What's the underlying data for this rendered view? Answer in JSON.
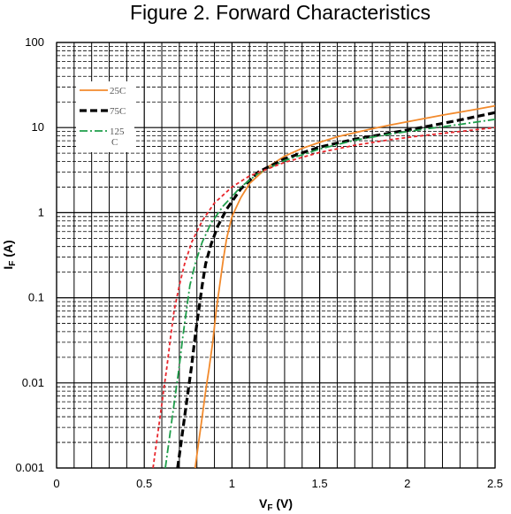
{
  "chart_data": {
    "type": "line",
    "title": "Figure 2. Forward Characteristics",
    "xlabel": {
      "main": "V",
      "sub": "F",
      "unit": " (V)"
    },
    "ylabel": {
      "main": "I",
      "sub": "F",
      "unit": " (A)"
    },
    "xlim": [
      0,
      2.5
    ],
    "ylim": [
      0.001,
      100
    ],
    "yscale": "log",
    "grid": true,
    "x_ticks": [
      {
        "value": 0,
        "label": "0"
      },
      {
        "value": 0.5,
        "label": "0.5"
      },
      {
        "value": 1,
        "label": "1"
      },
      {
        "value": 1.5,
        "label": "1.5"
      },
      {
        "value": 2,
        "label": "2"
      },
      {
        "value": 2.5,
        "label": "2.5"
      }
    ],
    "y_ticks": [
      {
        "value": 0.001,
        "label": "0.001"
      },
      {
        "value": 0.01,
        "label": "0.01"
      },
      {
        "value": 0.1,
        "label": "0.1"
      },
      {
        "value": 1,
        "label": "1"
      },
      {
        "value": 10,
        "label": "10"
      },
      {
        "value": 100,
        "label": "100"
      }
    ],
    "legend": {
      "placement": "top-left",
      "entries": [
        {
          "label": "25C",
          "series": 0
        },
        {
          "label": "75C",
          "series": 1
        },
        {
          "label": "125\nC",
          "series": 2
        }
      ]
    },
    "series": [
      {
        "name": "25C",
        "color": "#F28A2C",
        "style": "solid",
        "points": [
          [
            0.79,
            0.001
          ],
          [
            0.81,
            0.002
          ],
          [
            0.83,
            0.004
          ],
          [
            0.85,
            0.008
          ],
          [
            0.87,
            0.015
          ],
          [
            0.89,
            0.03
          ],
          [
            0.91,
            0.07
          ],
          [
            0.93,
            0.14
          ],
          [
            0.95,
            0.28
          ],
          [
            0.97,
            0.5
          ],
          [
            1.0,
            0.9
          ],
          [
            1.05,
            1.5
          ],
          [
            1.1,
            2.2
          ],
          [
            1.2,
            3.4
          ],
          [
            1.3,
            4.6
          ],
          [
            1.4,
            5.7
          ],
          [
            1.5,
            6.7
          ],
          [
            1.6,
            7.8
          ],
          [
            1.7,
            8.7
          ],
          [
            1.8,
            9.7
          ],
          [
            1.9,
            10.7
          ],
          [
            2.0,
            11.7
          ],
          [
            2.1,
            12.8
          ],
          [
            2.2,
            14.0
          ],
          [
            2.3,
            15.2
          ],
          [
            2.4,
            16.5
          ],
          [
            2.5,
            18.0
          ]
        ]
      },
      {
        "name": "75C",
        "color": "#000000",
        "style": "dashed",
        "points": [
          [
            0.69,
            0.001
          ],
          [
            0.71,
            0.002
          ],
          [
            0.73,
            0.004
          ],
          [
            0.75,
            0.008
          ],
          [
            0.77,
            0.016
          ],
          [
            0.79,
            0.035
          ],
          [
            0.81,
            0.07
          ],
          [
            0.83,
            0.14
          ],
          [
            0.85,
            0.25
          ],
          [
            0.88,
            0.42
          ],
          [
            0.92,
            0.7
          ],
          [
            0.97,
            1.1
          ],
          [
            1.05,
            1.9
          ],
          [
            1.15,
            3.0
          ],
          [
            1.3,
            4.3
          ],
          [
            1.5,
            5.9
          ],
          [
            1.7,
            7.3
          ],
          [
            1.9,
            8.6
          ],
          [
            2.1,
            10.2
          ],
          [
            2.3,
            12.3
          ],
          [
            2.5,
            15.0
          ]
        ]
      },
      {
        "name": "125C",
        "color": "#1E9E4A",
        "style": "dashdot",
        "points": [
          [
            0.62,
            0.001
          ],
          [
            0.64,
            0.002
          ],
          [
            0.66,
            0.004
          ],
          [
            0.68,
            0.008
          ],
          [
            0.7,
            0.016
          ],
          [
            0.72,
            0.035
          ],
          [
            0.74,
            0.07
          ],
          [
            0.76,
            0.14
          ],
          [
            0.79,
            0.25
          ],
          [
            0.83,
            0.45
          ],
          [
            0.88,
            0.75
          ],
          [
            0.95,
            1.2
          ],
          [
            1.05,
            2.0
          ],
          [
            1.15,
            2.9
          ],
          [
            1.3,
            4.1
          ],
          [
            1.5,
            5.6
          ],
          [
            1.7,
            7.1
          ],
          [
            1.9,
            8.4
          ],
          [
            2.1,
            9.6
          ],
          [
            2.3,
            10.9
          ],
          [
            2.5,
            12.5
          ]
        ]
      },
      {
        "name": "",
        "color": "#E8262C",
        "style": "dotted",
        "points": [
          [
            0.55,
            0.001
          ],
          [
            0.57,
            0.002
          ],
          [
            0.59,
            0.004
          ],
          [
            0.61,
            0.008
          ],
          [
            0.63,
            0.016
          ],
          [
            0.65,
            0.035
          ],
          [
            0.67,
            0.07
          ],
          [
            0.7,
            0.14
          ],
          [
            0.73,
            0.25
          ],
          [
            0.77,
            0.45
          ],
          [
            0.83,
            0.8
          ],
          [
            0.9,
            1.3
          ],
          [
            1.0,
            2.0
          ],
          [
            1.1,
            2.7
          ],
          [
            1.3,
            3.9
          ],
          [
            1.5,
            5.1
          ],
          [
            1.7,
            6.2
          ],
          [
            1.9,
            7.2
          ],
          [
            2.1,
            8.1
          ],
          [
            2.3,
            9.0
          ],
          [
            2.5,
            10.0
          ]
        ]
      }
    ]
  }
}
